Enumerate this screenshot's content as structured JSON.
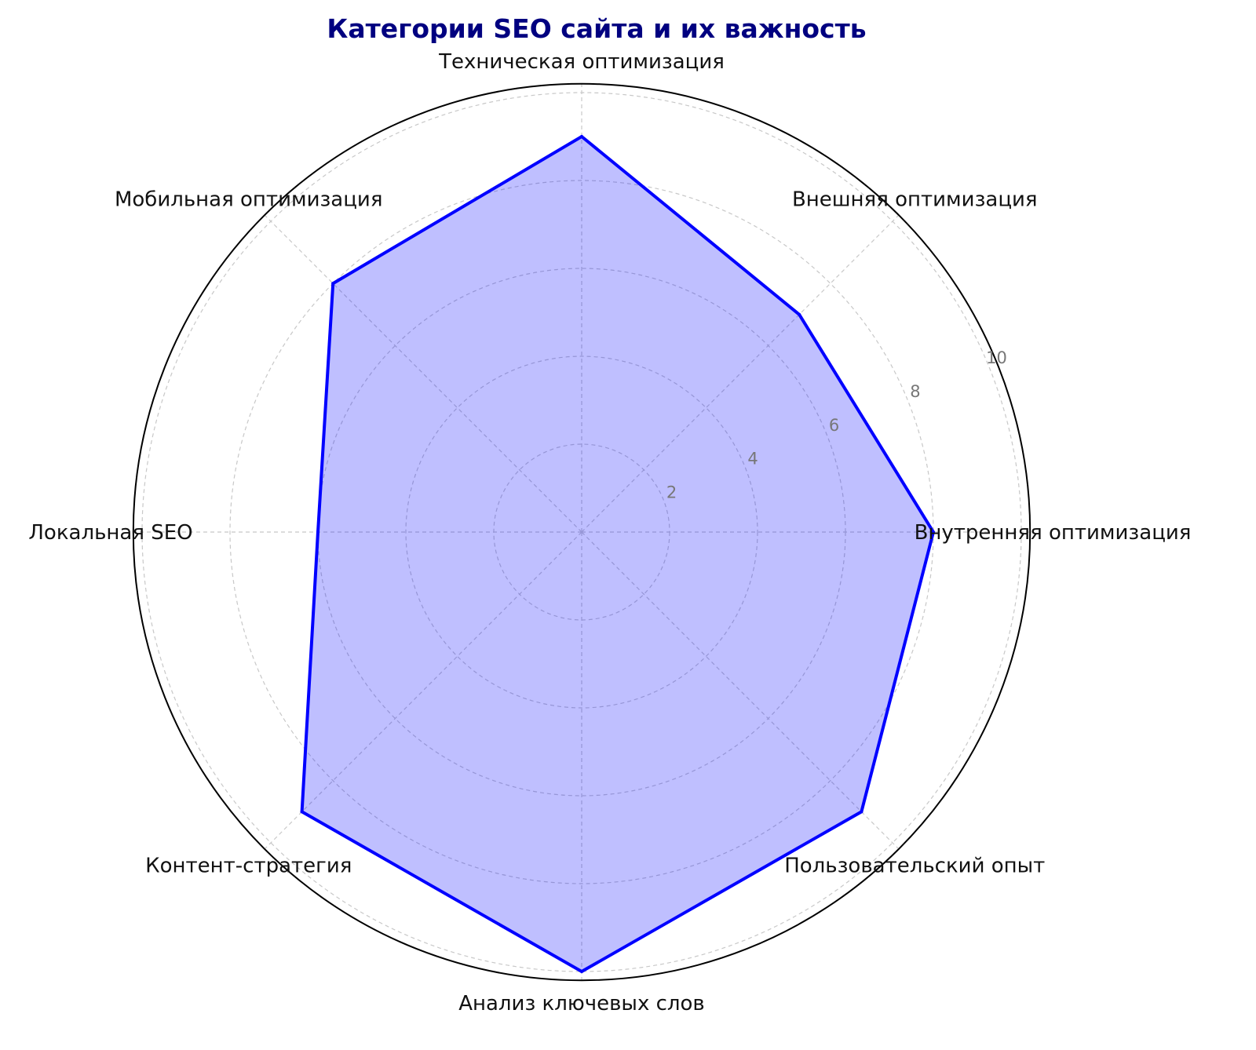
{
  "chart_data": {
    "type": "radar",
    "title": "Категории SEO сайта и их важность",
    "categories": [
      "Внутренняя оптимизация",
      "Внешняя оптимизация",
      "Техническая оптимизация",
      "Мобильная оптимизация",
      "Локальная SEO",
      "Контент-стратегия",
      "Анализ ключевых слов",
      "Пользовательский опыт"
    ],
    "values": [
      8,
      7,
      9,
      8,
      6,
      9,
      10,
      9
    ],
    "radial_ticks": [
      "2",
      "4",
      "6",
      "8",
      "10"
    ],
    "radial_tick_values": [
      2,
      4,
      6,
      8,
      10
    ],
    "rlim": [
      0,
      10.2
    ],
    "grid": true,
    "colors": {
      "line": "#0000ff",
      "fill": "#0000ff",
      "title": "#000080"
    }
  }
}
